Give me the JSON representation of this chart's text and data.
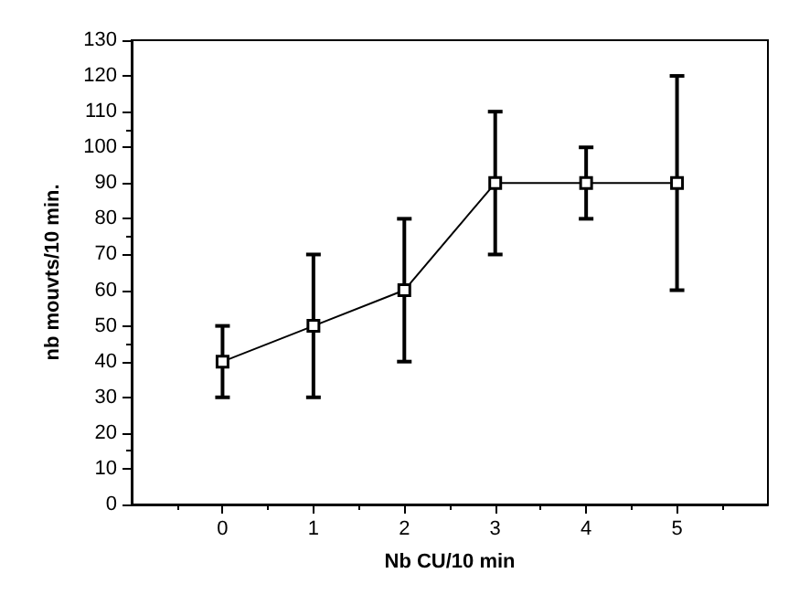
{
  "chart_data": {
    "type": "line",
    "xlabel": "Nb CU/10 min",
    "ylabel": "nb mouvts/10 min.",
    "x": [
      0,
      1,
      2,
      3,
      4,
      5
    ],
    "series": [
      {
        "color": "#000000",
        "values": [
          40,
          50,
          60,
          90,
          90,
          90
        ],
        "errors": [
          10,
          20,
          20,
          20,
          10,
          30
        ]
      }
    ],
    "xlim": [
      -1,
      6
    ],
    "xticks": [
      0,
      1,
      2,
      3,
      4,
      5
    ],
    "ylim": [
      0,
      130
    ],
    "yticks": [
      0,
      10,
      20,
      30,
      40,
      50,
      60,
      70,
      80,
      90,
      100,
      110,
      120,
      130
    ],
    "marker": "square",
    "line_style": "solid"
  }
}
